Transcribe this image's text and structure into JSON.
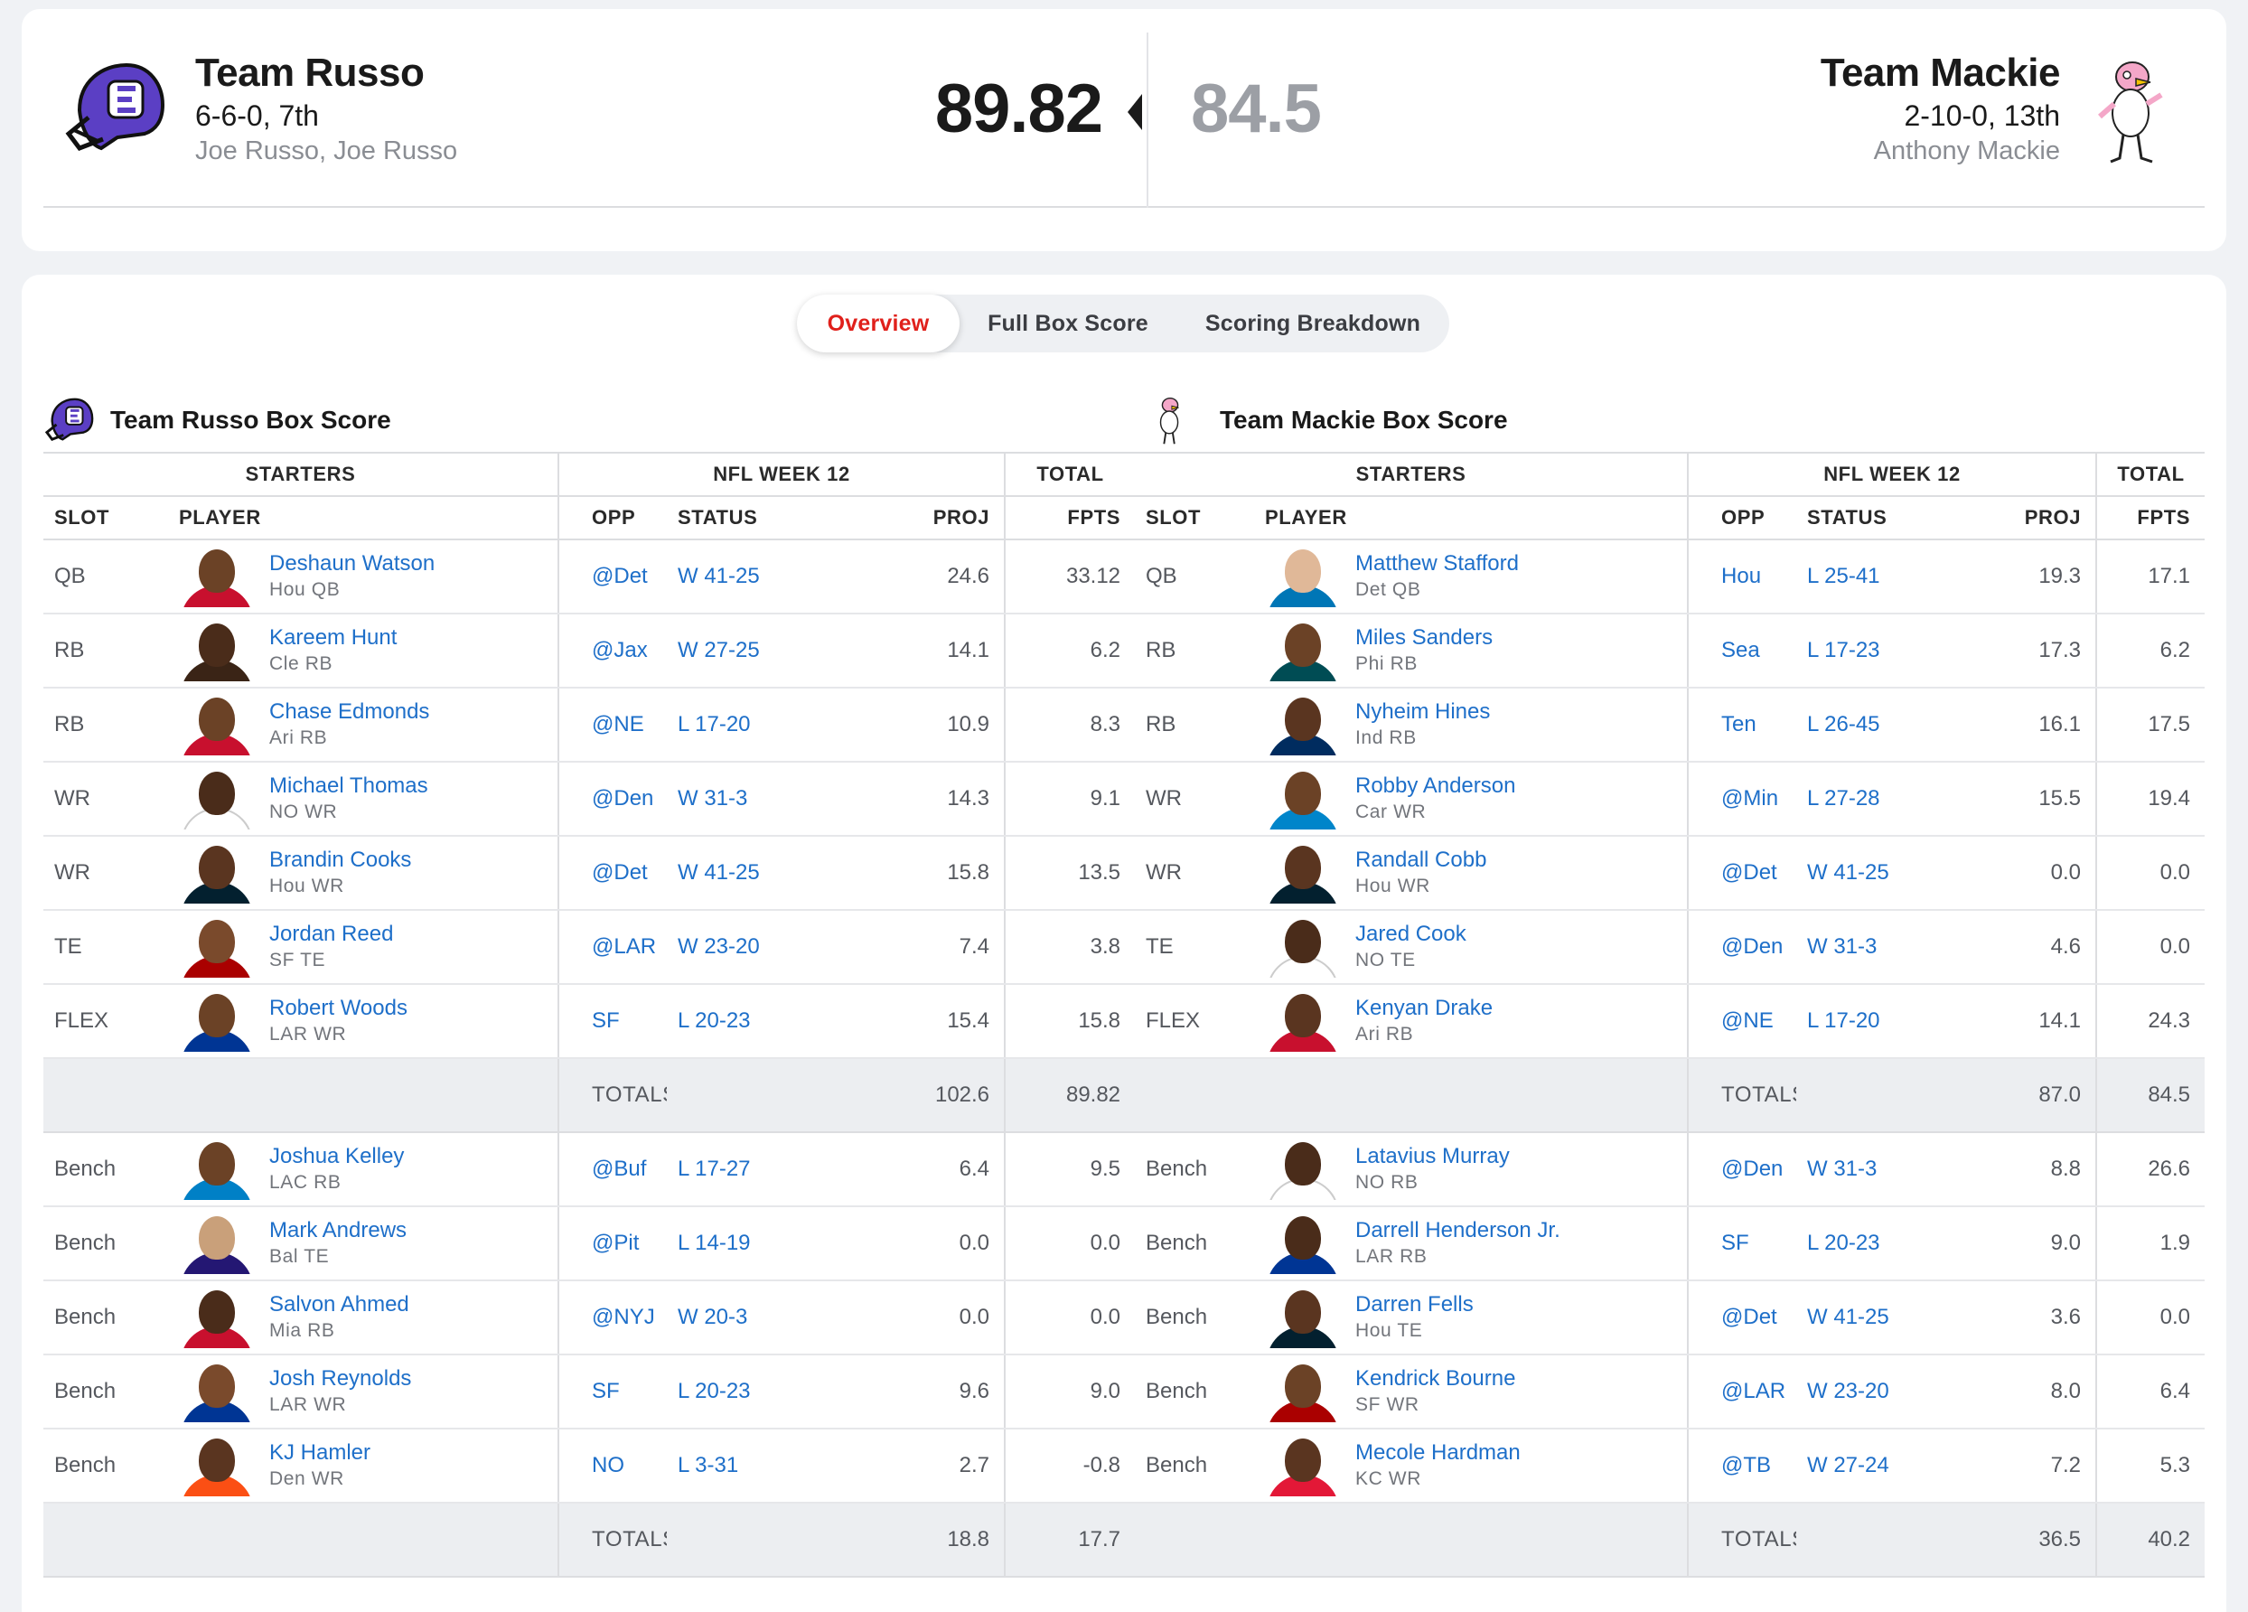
{
  "matchup": {
    "home": {
      "name": "Team Russo",
      "record": "6-6-0, 7th",
      "owners": "Joe Russo, Joe Russo",
      "score": "89.82"
    },
    "away": {
      "name": "Team Mackie",
      "record": "2-10-0, 13th",
      "owners": "Anthony Mackie",
      "score": "84.5"
    }
  },
  "tabs": [
    "Overview",
    "Full Box Score",
    "Scoring Breakdown"
  ],
  "columns": {
    "group_starters": "STARTERS",
    "group_week": "NFL WEEK 12",
    "group_total": "TOTAL",
    "slot": "SLOT",
    "player": "PLAYER",
    "opp": "OPP",
    "status": "STATUS",
    "proj": "PROJ",
    "fpts": "FPTS"
  },
  "totals_label": "TOTALS",
  "colors": {
    "accent": "#e0201b",
    "link": "#1e6fc9",
    "muted": "#8a8d93"
  },
  "left_box": {
    "title": "Team Russo Box Score",
    "starters": [
      {
        "slot": "QB",
        "name": "Deshaun Watson",
        "meta": "Hou  QB",
        "opp": "@Det",
        "status": "W 41-25",
        "proj": "24.6",
        "fpts": "33.12",
        "skin": "#6b4226",
        "jersey": "#c8102e"
      },
      {
        "slot": "RB",
        "name": "Kareem Hunt",
        "meta": "Cle  RB",
        "opp": "@Jax",
        "status": "W 27-25",
        "proj": "14.1",
        "fpts": "6.2",
        "skin": "#4a2c1a",
        "jersey": "#3a2416"
      },
      {
        "slot": "RB",
        "name": "Chase Edmonds",
        "meta": "Ari  RB",
        "opp": "@NE",
        "status": "L 17-20",
        "proj": "10.9",
        "fpts": "8.3",
        "skin": "#6b4226",
        "jersey": "#c8102e"
      },
      {
        "slot": "WR",
        "name": "Michael Thomas",
        "meta": "NO  WR",
        "opp": "@Den",
        "status": "W 31-3",
        "proj": "14.3",
        "fpts": "9.1",
        "skin": "#4a2c1a",
        "jersey": "#ffffff"
      },
      {
        "slot": "WR",
        "name": "Brandin Cooks",
        "meta": "Hou  WR",
        "opp": "@Det",
        "status": "W 41-25",
        "proj": "15.8",
        "fpts": "13.5",
        "skin": "#5a3520",
        "jersey": "#03202f"
      },
      {
        "slot": "TE",
        "name": "Jordan Reed",
        "meta": "SF  TE",
        "opp": "@LAR",
        "status": "W 23-20",
        "proj": "7.4",
        "fpts": "3.8",
        "skin": "#7a4a2c",
        "jersey": "#aa0000"
      },
      {
        "slot": "FLEX",
        "name": "Robert Woods",
        "meta": "LAR  WR",
        "opp": "SF",
        "status": "L 20-23",
        "proj": "15.4",
        "fpts": "15.8",
        "skin": "#6b4226",
        "jersey": "#003594"
      }
    ],
    "starters_totals": {
      "proj": "102.6",
      "fpts": "89.82"
    },
    "bench": [
      {
        "slot": "Bench",
        "name": "Joshua Kelley",
        "meta": "LAC  RB",
        "opp": "@Buf",
        "status": "L 17-27",
        "proj": "6.4",
        "fpts": "9.5",
        "skin": "#6b4226",
        "jersey": "#0080c6"
      },
      {
        "slot": "Bench",
        "name": "Mark Andrews",
        "meta": "Bal  TE",
        "opp": "@Pit",
        "status": "L 14-19",
        "proj": "0.0",
        "fpts": "0.0",
        "skin": "#c9a07a",
        "jersey": "#241773"
      },
      {
        "slot": "Bench",
        "name": "Salvon Ahmed",
        "meta": "Mia  RB",
        "opp": "@NYJ",
        "status": "W 20-3",
        "proj": "0.0",
        "fpts": "0.0",
        "skin": "#4a2c1a",
        "jersey": "#c8102e"
      },
      {
        "slot": "Bench",
        "name": "Josh Reynolds",
        "meta": "LAR  WR",
        "opp": "SF",
        "status": "L 20-23",
        "proj": "9.6",
        "fpts": "9.0",
        "skin": "#7a4a2c",
        "jersey": "#003594"
      },
      {
        "slot": "Bench",
        "name": "KJ Hamler",
        "meta": "Den  WR",
        "opp": "NO",
        "status": "L 3-31",
        "proj": "2.7",
        "fpts": "-0.8",
        "skin": "#5a3520",
        "jersey": "#fb4f14"
      }
    ],
    "bench_totals": {
      "proj": "18.8",
      "fpts": "17.7"
    }
  },
  "right_box": {
    "title": "Team Mackie Box Score",
    "starters": [
      {
        "slot": "QB",
        "name": "Matthew Stafford",
        "meta": "Det  QB",
        "opp": "Hou",
        "status": "L 25-41",
        "proj": "19.3",
        "fpts": "17.1",
        "skin": "#e0b898",
        "jersey": "#0076b6"
      },
      {
        "slot": "RB",
        "name": "Miles Sanders",
        "meta": "Phi  RB",
        "opp": "Sea",
        "status": "L 17-23",
        "proj": "17.3",
        "fpts": "6.2",
        "skin": "#6b4226",
        "jersey": "#004c54"
      },
      {
        "slot": "RB",
        "name": "Nyheim Hines",
        "meta": "Ind  RB",
        "opp": "Ten",
        "status": "L 26-45",
        "proj": "16.1",
        "fpts": "17.5",
        "skin": "#5a3520",
        "jersey": "#002c5f"
      },
      {
        "slot": "WR",
        "name": "Robby Anderson",
        "meta": "Car  WR",
        "opp": "@Min",
        "status": "L 27-28",
        "proj": "15.5",
        "fpts": "19.4",
        "skin": "#6b4226",
        "jersey": "#0085ca"
      },
      {
        "slot": "WR",
        "name": "Randall Cobb",
        "meta": "Hou  WR",
        "opp": "@Det",
        "status": "W 41-25",
        "proj": "0.0",
        "fpts": "0.0",
        "skin": "#5a3520",
        "jersey": "#03202f"
      },
      {
        "slot": "TE",
        "name": "Jared Cook",
        "meta": "NO  TE",
        "opp": "@Den",
        "status": "W 31-3",
        "proj": "4.6",
        "fpts": "0.0",
        "skin": "#4a2c1a",
        "jersey": "#ffffff"
      },
      {
        "slot": "FLEX",
        "name": "Kenyan Drake",
        "meta": "Ari  RB",
        "opp": "@NE",
        "status": "L 17-20",
        "proj": "14.1",
        "fpts": "24.3",
        "skin": "#5a3520",
        "jersey": "#c8102e"
      }
    ],
    "starters_totals": {
      "proj": "87.0",
      "fpts": "84.5"
    },
    "bench": [
      {
        "slot": "Bench",
        "name": "Latavius Murray",
        "meta": "NO  RB",
        "opp": "@Den",
        "status": "W 31-3",
        "proj": "8.8",
        "fpts": "26.6",
        "skin": "#4a2c1a",
        "jersey": "#ffffff"
      },
      {
        "slot": "Bench",
        "name": "Darrell Henderson Jr.",
        "meta": "LAR  RB",
        "opp": "SF",
        "status": "L 20-23",
        "proj": "9.0",
        "fpts": "1.9",
        "skin": "#4a2c1a",
        "jersey": "#003594"
      },
      {
        "slot": "Bench",
        "name": "Darren Fells",
        "meta": "Hou  TE",
        "opp": "@Det",
        "status": "W 41-25",
        "proj": "3.6",
        "fpts": "0.0",
        "skin": "#5a3520",
        "jersey": "#03202f"
      },
      {
        "slot": "Bench",
        "name": "Kendrick Bourne",
        "meta": "SF  WR",
        "opp": "@LAR",
        "status": "W 23-20",
        "proj": "8.0",
        "fpts": "6.4",
        "skin": "#6b4226",
        "jersey": "#aa0000"
      },
      {
        "slot": "Bench",
        "name": "Mecole Hardman",
        "meta": "KC  WR",
        "opp": "@TB",
        "status": "W 27-24",
        "proj": "7.2",
        "fpts": "5.3",
        "skin": "#5a3520",
        "jersey": "#e31837"
      }
    ],
    "bench_totals": {
      "proj": "36.5",
      "fpts": "40.2"
    }
  }
}
